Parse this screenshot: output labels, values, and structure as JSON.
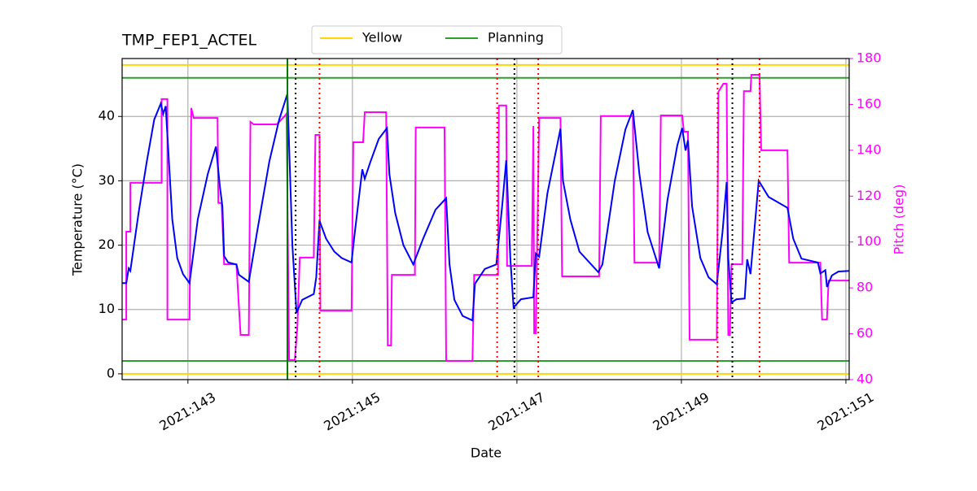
{
  "chart_data": {
    "type": "line",
    "title": "TMP_FEP1_ACTEL",
    "xlabel": "Date",
    "ylabel": "Temperature (°C)",
    "y2label": "Pitch (deg)",
    "y2color": "#ff00ff",
    "grid": true,
    "legend": "upper center",
    "xlim": [
      142.2,
      151.04
    ],
    "ylim": [
      -0.9,
      49
    ],
    "y2lim": [
      40,
      180
    ],
    "xticks": [
      {
        "value": 143,
        "label": "2021:143"
      },
      {
        "value": 145,
        "label": "2021:145"
      },
      {
        "value": 147,
        "label": "2021:147"
      },
      {
        "value": 149,
        "label": "2021:149"
      },
      {
        "value": 151,
        "label": "2021:151"
      }
    ],
    "yticks": [
      0,
      10,
      20,
      30,
      40
    ],
    "y2ticks": [
      40,
      60,
      80,
      100,
      120,
      140,
      160,
      180
    ],
    "limits": [
      {
        "name": "Yellow",
        "color": "#ffd700",
        "values": [
          0,
          48
        ]
      },
      {
        "name": "Planning",
        "color": "#2ca02c",
        "values": [
          2,
          46
        ]
      }
    ],
    "vlines": [
      {
        "x": 144.21,
        "color": "#007700",
        "style": "solid"
      },
      {
        "x": 144.31,
        "color": "#000000",
        "style": "dotted"
      },
      {
        "x": 146.97,
        "color": "#000000",
        "style": "dotted"
      },
      {
        "x": 149.62,
        "color": "#000000",
        "style": "dotted"
      },
      {
        "x": 144.6,
        "color": "#ff0000",
        "style": "dotted"
      },
      {
        "x": 146.76,
        "color": "#ff0000",
        "style": "dotted"
      },
      {
        "x": 147.26,
        "color": "#ff0000",
        "style": "dotted"
      },
      {
        "x": 149.44,
        "color": "#ff0000",
        "style": "dotted"
      },
      {
        "x": 149.95,
        "color": "#ff0000",
        "style": "dotted"
      }
    ],
    "series": [
      {
        "color": "#0000ff",
        "x": [
          142.2,
          142.25,
          142.28,
          142.3,
          142.4,
          142.5,
          142.59,
          142.67,
          142.7,
          142.73,
          142.76,
          142.81,
          142.87,
          142.94,
          143.02,
          143.12,
          143.24,
          143.34,
          143.39,
          143.42,
          143.44,
          143.49,
          143.59,
          143.62,
          143.74,
          143.84,
          143.99,
          144.11,
          144.21,
          144.27,
          144.32,
          144.39,
          144.53,
          144.56,
          144.6,
          144.68,
          144.78,
          144.87,
          144.99,
          145.02,
          145.12,
          145.15,
          145.22,
          145.32,
          145.42,
          145.45,
          145.52,
          145.62,
          145.74,
          145.86,
          146.01,
          146.14,
          146.18,
          146.24,
          146.34,
          146.46,
          146.49,
          146.61,
          146.75,
          146.82,
          146.87,
          146.92,
          146.96,
          147.05,
          147.2,
          147.23,
          147.27,
          147.37,
          147.53,
          147.56,
          147.65,
          147.76,
          147.99,
          148.04,
          148.19,
          148.32,
          148.41,
          148.49,
          148.59,
          148.73,
          148.83,
          148.95,
          149.01,
          149.05,
          149.08,
          149.13,
          149.23,
          149.33,
          149.43,
          149.5,
          149.55,
          149.57,
          149.61,
          149.67,
          149.77,
          149.8,
          149.84,
          149.94,
          150.06,
          150.29,
          150.36,
          150.46,
          150.66,
          150.69,
          150.75,
          150.77,
          150.83,
          150.91,
          151.04
        ],
        "values": [
          14.1,
          14.1,
          16.4,
          16.0,
          25,
          33,
          39.5,
          42.0,
          40.4,
          41.6,
          35,
          24,
          18,
          15.5,
          14.1,
          24,
          31,
          35.3,
          29,
          26,
          18.3,
          17.3,
          17.0,
          15.4,
          14.3,
          22,
          33,
          39.5,
          43.5,
          20,
          9.5,
          11.5,
          12.4,
          15,
          23.8,
          21,
          19,
          18,
          17.3,
          21,
          31.8,
          30.3,
          33,
          36.5,
          38.2,
          31,
          25,
          20,
          17.0,
          21,
          25.5,
          27.3,
          17,
          11.5,
          9,
          8.3,
          14,
          16.3,
          17.0,
          26,
          33.2,
          18,
          10.3,
          11.6,
          11.9,
          18.7,
          18.2,
          28,
          38.1,
          30,
          24,
          19,
          15.8,
          17,
          30,
          38,
          41.0,
          31,
          22,
          16.4,
          27,
          35.5,
          38.2,
          34.7,
          36.3,
          26,
          18,
          15,
          13.9,
          22,
          29.8,
          18,
          11.1,
          11.6,
          11.7,
          17.8,
          15.5,
          30.0,
          27.5,
          25.8,
          21,
          17.9,
          17.3,
          15.6,
          16.1,
          13.5,
          15.3,
          15.9,
          16.0
        ]
      },
      {
        "color": "#ff00ff",
        "axis": "y2",
        "x": [
          142.2,
          142.25,
          142.25,
          142.3,
          142.3,
          142.68,
          142.68,
          142.75,
          142.75,
          143.02,
          143.04,
          143.07,
          143.36,
          143.37,
          143.41,
          143.44,
          143.59,
          143.64,
          143.74,
          143.76,
          143.8,
          144.08,
          144.18,
          144.2,
          144.23,
          144.3,
          144.33,
          144.36,
          144.53,
          144.55,
          144.6,
          144.61,
          144.99,
          145.01,
          145.13,
          145.15,
          145.41,
          145.43,
          145.47,
          145.48,
          145.76,
          145.77,
          146.12,
          146.14,
          146.46,
          146.48,
          146.77,
          146.78,
          146.87,
          146.88,
          147.18,
          147.2,
          147.21,
          147.23,
          147.27,
          147.53,
          147.55,
          148.0,
          148.02,
          148.41,
          148.43,
          148.73,
          148.75,
          149.01,
          149.03,
          149.08,
          149.1,
          149.43,
          149.45,
          149.51,
          149.55,
          149.57,
          149.59,
          149.61,
          149.74,
          149.76,
          149.84,
          149.85,
          149.95,
          149.97,
          150.29,
          150.31,
          150.69,
          150.71,
          150.77,
          150.79,
          151.04
        ],
        "values": [
          66.2,
          66.2,
          104.5,
          104.5,
          125.8,
          125.8,
          162.3,
          162.3,
          66.2,
          66.2,
          158.4,
          154.1,
          154.1,
          117,
          117,
          90.3,
          90.3,
          59.5,
          59.5,
          152.4,
          151.3,
          151.3,
          155,
          156,
          48.5,
          48.5,
          62.7,
          93.2,
          93.2,
          146.7,
          146.7,
          70.1,
          70.1,
          143.5,
          143.5,
          156.6,
          156.6,
          54.9,
          54.9,
          85.7,
          85.7,
          149.9,
          149.9,
          48.2,
          48.2,
          85.7,
          85.7,
          159.5,
          159.5,
          89.6,
          89.6,
          150.6,
          60.2,
          60.2,
          154.1,
          154.1,
          85,
          85,
          154.9,
          154.9,
          91,
          91,
          155.2,
          155.2,
          148.1,
          148.1,
          57.4,
          57.4,
          165.5,
          169,
          169,
          59.5,
          59.5,
          90.3,
          90.3,
          165.8,
          165.8,
          172.9,
          172.9,
          140,
          140,
          91,
          91,
          66.2,
          66.2,
          83.2,
          83.2
        ]
      }
    ]
  }
}
